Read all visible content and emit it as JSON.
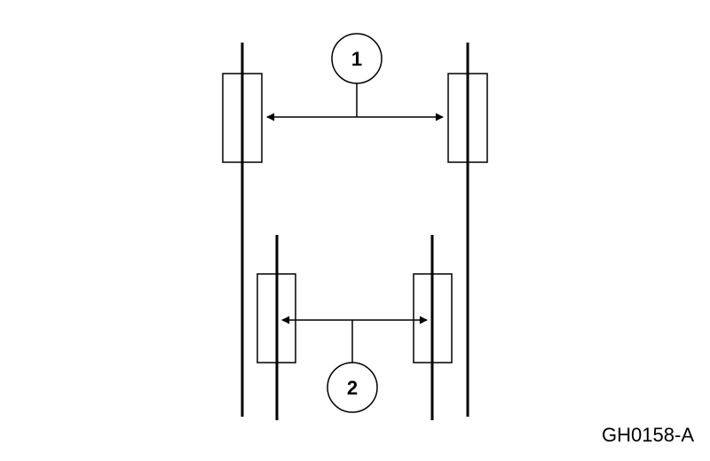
{
  "diagram": {
    "callouts": [
      {
        "number": "1"
      },
      {
        "number": "2"
      }
    ],
    "reference_code": "GH0158-A",
    "colors": {
      "line": "#000000",
      "background": "#ffffff"
    }
  }
}
